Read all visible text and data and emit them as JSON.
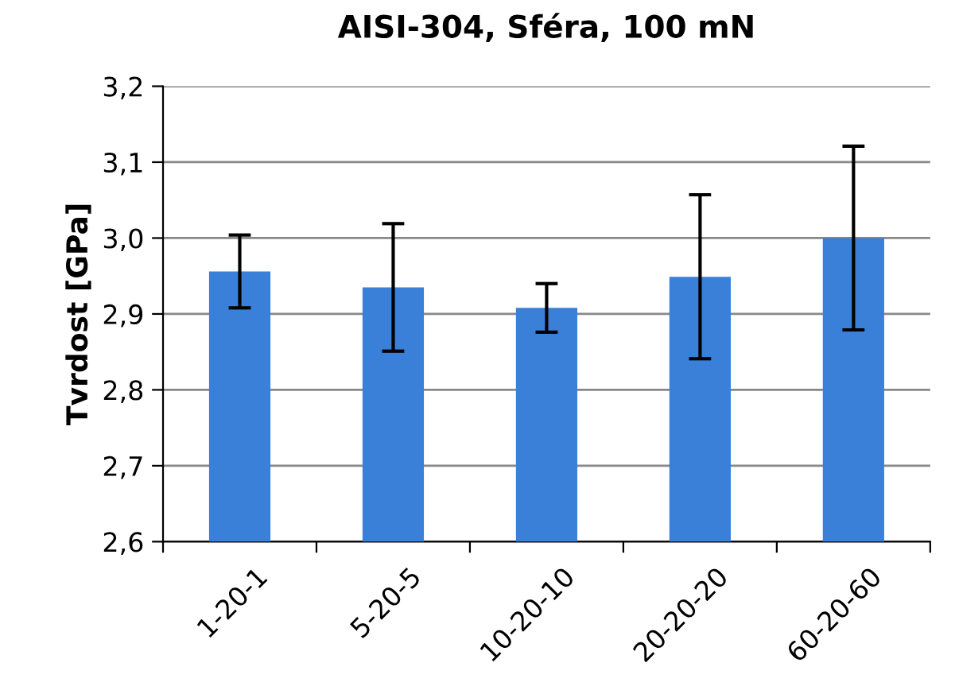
{
  "chart_data": {
    "type": "bar",
    "title": "AISI-304, Sféra, 100 mN",
    "ylabel": "Tvrdost [GPa]",
    "categories": [
      "1-20-1",
      "5-20-5",
      "10-20-10",
      "20-20-20",
      "60-20-60"
    ],
    "values": [
      2.956,
      2.935,
      2.908,
      2.949,
      3.0
    ],
    "errors": [
      0.048,
      0.084,
      0.032,
      0.108,
      0.121
    ],
    "color": "#3a7fd8",
    "ylim": [
      2.6,
      3.2
    ],
    "yticks": [
      {
        "value": 2.6,
        "label": "2,6"
      },
      {
        "value": 2.7,
        "label": "2,7"
      },
      {
        "value": 2.8,
        "label": "2,8"
      },
      {
        "value": 2.9,
        "label": "2,9"
      },
      {
        "value": 3.0,
        "label": "3,0"
      },
      {
        "value": 3.1,
        "label": "3,1"
      },
      {
        "value": 3.2,
        "label": "3,2"
      }
    ],
    "grid": "y"
  }
}
